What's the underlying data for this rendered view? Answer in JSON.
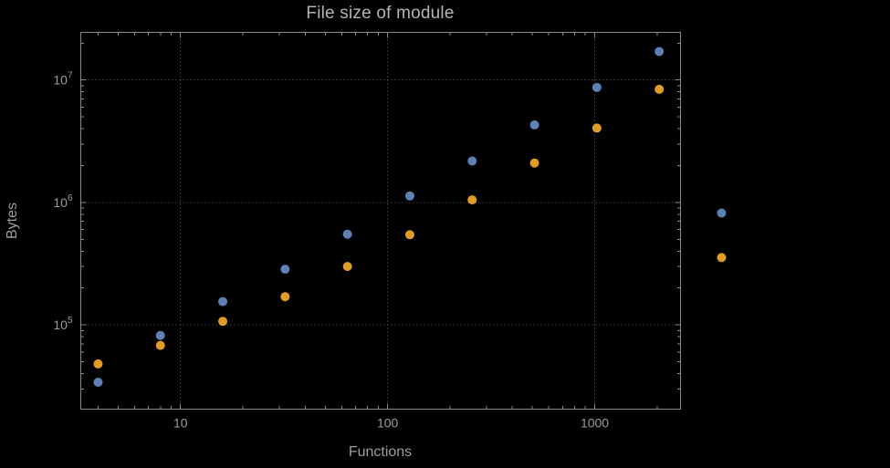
{
  "background": "#000000",
  "chart_data": {
    "type": "scatter",
    "title": "File size of module",
    "xlabel": "Functions",
    "ylabel": "Bytes",
    "x_scale": "log",
    "y_scale": "log",
    "xlim": [
      3.3,
      2595
    ],
    "ylim": [
      20500,
      24500000
    ],
    "grid": "major-dotted",
    "legend_position": "none",
    "x": [
      4,
      8,
      16,
      32,
      64,
      128,
      256,
      512,
      1024,
      2048,
      4096
    ],
    "series": [
      {
        "name": "blue",
        "color": "#5e81b5",
        "values": [
          34000,
          82000,
          155000,
          285000,
          550000,
          1130000,
          2180000,
          4300000,
          8700000,
          17100000,
          820000
        ]
      },
      {
        "name": "orange",
        "color": "#e19c24",
        "values": [
          48000,
          68000,
          107000,
          170000,
          300000,
          545000,
          1050000,
          2100000,
          4050000,
          8400000,
          355000
        ]
      }
    ],
    "x_ticks": [
      {
        "value": 10,
        "label": "10"
      },
      {
        "value": 100,
        "label": "100"
      },
      {
        "value": 1000,
        "label": "1000"
      }
    ],
    "y_ticks": [
      {
        "value": 100000,
        "base": "10",
        "exp": "5"
      },
      {
        "value": 1000000,
        "base": "10",
        "exp": "6"
      },
      {
        "value": 10000000,
        "base": "10",
        "exp": "7"
      }
    ],
    "colors": {
      "grid": "#666666",
      "frame": "#8c8c8c",
      "text": "#9c9c9c",
      "title": "#b4b4b4"
    },
    "point_radius": 5
  }
}
